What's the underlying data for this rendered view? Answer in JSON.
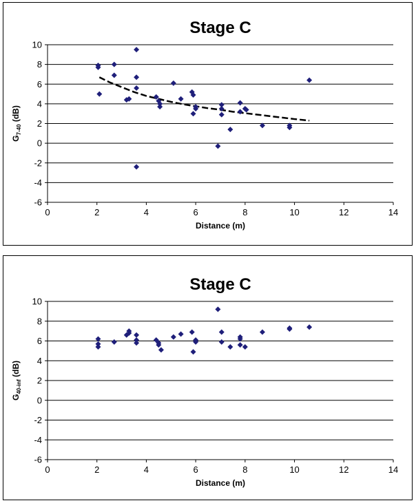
{
  "chart_data": [
    {
      "type": "scatter",
      "title": "Stage C",
      "xlabel": "Distance (m)",
      "ylabel": {
        "main": "G",
        "sub": "7-40",
        "unit": " (dB)"
      },
      "xlim": [
        0,
        14
      ],
      "ylim": [
        -6,
        10
      ],
      "xticks": [
        0,
        2,
        4,
        6,
        8,
        10,
        12,
        14
      ],
      "yticks": [
        -6,
        -4,
        -2,
        0,
        2,
        4,
        6,
        8,
        10
      ],
      "grid": "horizontal",
      "marker_color": "#1f1f7a",
      "trendline_color": "#000000",
      "series": [
        {
          "x": [
            2.05,
            2.05,
            2.1,
            2.7,
            2.7,
            3.2,
            3.3,
            3.6,
            3.6,
            3.6,
            3.6,
            4.4,
            4.5,
            4.55,
            4.55,
            5.1,
            5.4,
            5.85,
            5.9,
            5.9,
            6.0,
            6.0,
            6.9,
            7.05,
            7.05,
            7.05,
            7.4,
            7.8,
            7.8,
            8.0,
            8.05,
            8.7,
            9.8,
            9.8,
            10.6
          ],
          "y": [
            7.9,
            7.7,
            5.0,
            8.0,
            6.9,
            4.4,
            4.5,
            9.5,
            6.7,
            5.6,
            -2.4,
            4.7,
            4.3,
            4.0,
            3.7,
            6.1,
            4.5,
            5.2,
            4.9,
            3.0,
            3.7,
            3.5,
            -0.3,
            3.9,
            3.5,
            2.9,
            1.4,
            4.1,
            3.2,
            3.5,
            3.4,
            1.8,
            1.8,
            1.6,
            6.4
          ]
        }
      ],
      "trendline": {
        "x": [
          2.1,
          2.5,
          3.0,
          3.5,
          4.0,
          4.5,
          5.0,
          5.5,
          6.0,
          6.5,
          7.0,
          7.5,
          8.0,
          8.5,
          9.0,
          9.5,
          10.0,
          10.6
        ],
        "y": [
          6.7,
          6.2,
          5.7,
          5.2,
          4.8,
          4.5,
          4.2,
          3.95,
          3.75,
          3.55,
          3.4,
          3.2,
          3.05,
          2.9,
          2.75,
          2.6,
          2.45,
          2.3
        ]
      }
    },
    {
      "type": "scatter",
      "title": "Stage C",
      "xlabel": "Distance (m)",
      "ylabel": {
        "main": "G",
        "sub": "40-inf",
        "unit": " (dB)"
      },
      "xlim": [
        0,
        14
      ],
      "ylim": [
        -6,
        10
      ],
      "xticks": [
        0,
        2,
        4,
        6,
        8,
        10,
        12,
        14
      ],
      "yticks": [
        -6,
        -4,
        -2,
        0,
        2,
        4,
        6,
        8,
        10
      ],
      "grid": "horizontal",
      "marker_color": "#1f1f7a",
      "series": [
        {
          "x": [
            2.05,
            2.05,
            2.05,
            2.7,
            3.2,
            3.3,
            3.3,
            3.6,
            3.6,
            3.6,
            4.4,
            4.5,
            4.5,
            4.6,
            5.1,
            5.4,
            5.85,
            5.9,
            6.0,
            6.0,
            6.9,
            7.05,
            7.05,
            7.4,
            7.8,
            7.8,
            7.8,
            8.0,
            8.7,
            9.8,
            9.8,
            10.6
          ],
          "y": [
            6.2,
            5.7,
            5.4,
            5.9,
            6.6,
            6.8,
            7.0,
            6.6,
            6.1,
            5.8,
            6.1,
            5.8,
            5.6,
            5.1,
            6.4,
            6.7,
            6.9,
            4.9,
            6.1,
            5.9,
            9.2,
            6.9,
            5.9,
            5.4,
            6.4,
            6.2,
            5.6,
            5.4,
            6.9,
            7.3,
            7.2,
            7.4
          ]
        }
      ]
    }
  ]
}
